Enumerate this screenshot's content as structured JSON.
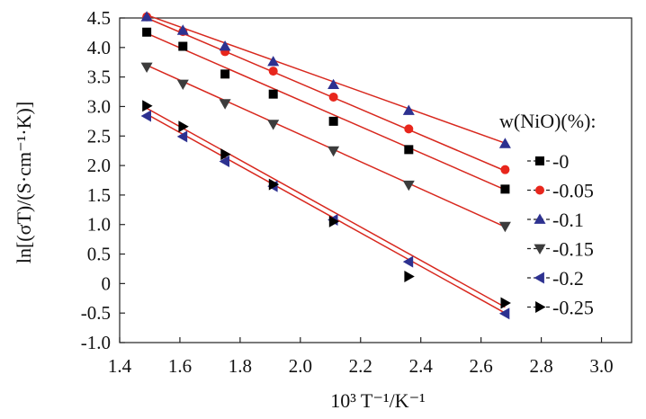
{
  "chart_data": {
    "type": "scatter",
    "title": "",
    "xlabel": "10³ T⁻¹/K⁻¹",
    "ylabel": "ln[(σT)/(S·cm⁻¹·K)]",
    "xlim": [
      1.4,
      3.1
    ],
    "ylim": [
      -1.0,
      4.5
    ],
    "x_ticks": [
      "1.4",
      "1.6",
      "1.8",
      "2.0",
      "2.2",
      "2.4",
      "2.6",
      "2.8",
      "3.0"
    ],
    "y_ticks": [
      "-1.0",
      "-0.5",
      "0",
      "0.5",
      "1.0",
      "1.5",
      "2.0",
      "2.5",
      "3.0",
      "3.5",
      "4.0",
      "4.5"
    ],
    "grid": false,
    "legend_title": "w(NiO)(%):",
    "legend_position": "right",
    "fit_lines": true,
    "x": [
      1.49,
      1.61,
      1.75,
      1.91,
      2.11,
      2.36,
      2.68
    ],
    "series": [
      {
        "name": "-0",
        "marker": "square",
        "color": "#000000",
        "values": [
          4.26,
          4.02,
          3.55,
          3.21,
          2.75,
          2.27,
          1.6
        ],
        "fit": [
          4.24,
          1.59
        ]
      },
      {
        "name": "-0.05",
        "marker": "circle",
        "color": "#e8261c",
        "values": [
          4.52,
          4.27,
          3.93,
          3.6,
          3.16,
          2.62,
          1.93
        ],
        "fit": [
          4.5,
          1.91
        ]
      },
      {
        "name": "-0.1",
        "marker": "triangle-up",
        "color": "#2d3190",
        "values": [
          4.52,
          4.29,
          4.02,
          3.76,
          3.37,
          2.93,
          2.37
        ],
        "fit": [
          4.55,
          2.38
        ]
      },
      {
        "name": "-0.15",
        "marker": "triangle-down",
        "color": "#3c3c3c",
        "values": [
          3.67,
          3.38,
          3.05,
          2.7,
          2.25,
          1.67,
          0.97
        ],
        "fit": [
          3.7,
          0.96
        ]
      },
      {
        "name": "-0.2",
        "marker": "triangle-left",
        "color": "#2d3190",
        "values": [
          2.84,
          2.49,
          2.07,
          1.65,
          1.08,
          0.37,
          -0.51
        ],
        "fit": [
          2.87,
          -0.5
        ]
      },
      {
        "name": "-0.25",
        "marker": "triangle-right",
        "color": "#000000",
        "values": [
          3.01,
          2.66,
          2.19,
          1.68,
          1.05,
          0.12,
          -0.33
        ],
        "fit": [
          2.97,
          -0.4
        ]
      }
    ]
  }
}
